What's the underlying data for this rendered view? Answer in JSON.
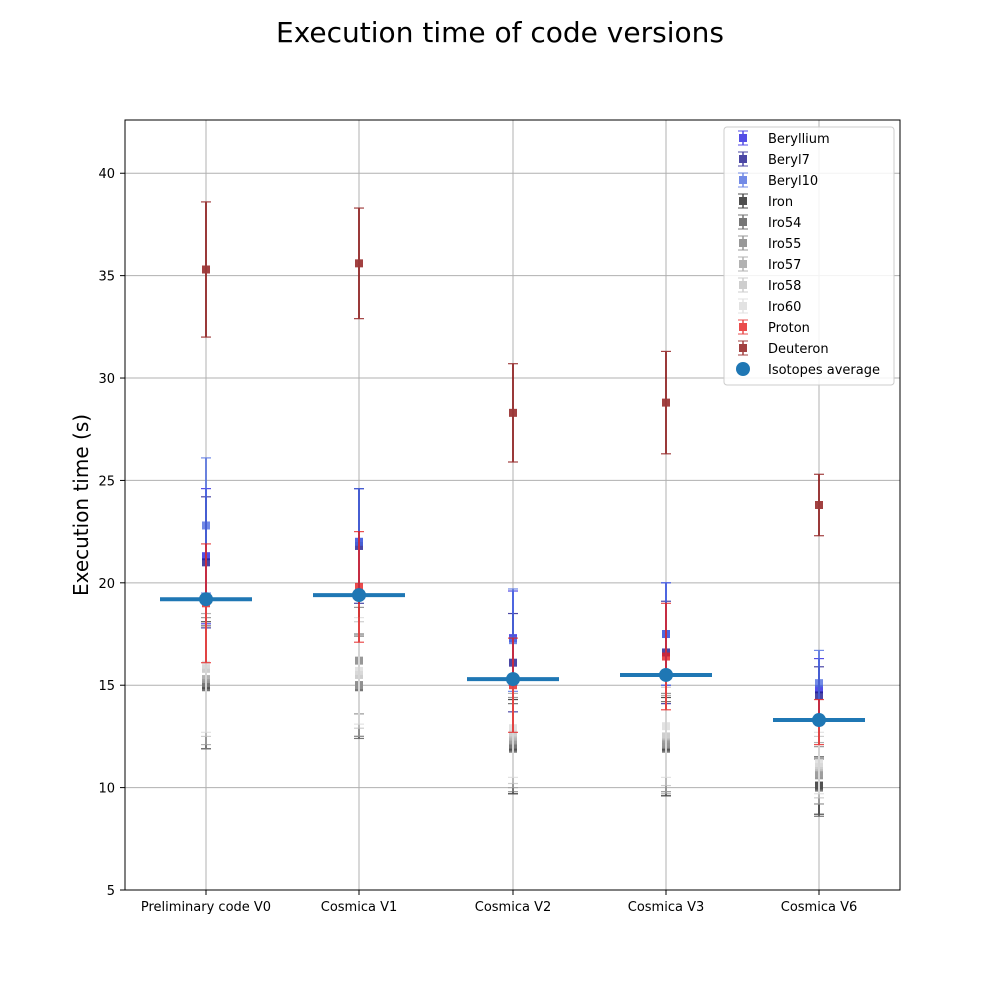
{
  "chart_data": {
    "type": "scatter",
    "title": "Execution time of code versions",
    "xlabel": "",
    "ylabel": "Execution time (s)",
    "categories": [
      "Preliminary code V0",
      "Cosmica V1",
      "Cosmica V2",
      "Cosmica V3",
      "Cosmica V6"
    ],
    "ylim": [
      5,
      42.6
    ],
    "yticks": [
      5,
      10,
      15,
      20,
      25,
      30,
      35,
      40
    ],
    "grid": true,
    "legend_position": "top-right",
    "series": [
      {
        "name": "Beryllium",
        "color": "#2a22e0",
        "values": [
          21.3,
          22.0,
          17.3,
          17.5,
          14.8
        ],
        "errors": [
          3.3,
          2.6,
          2.3,
          2.5,
          1.5
        ]
      },
      {
        "name": "Beryl7",
        "color": "#1f1a8f",
        "values": [
          21.0,
          21.8,
          16.1,
          16.6,
          14.5
        ],
        "errors": [
          3.2,
          2.8,
          2.4,
          2.5,
          1.4
        ]
      },
      {
        "name": "Beryl10",
        "color": "#4f6ee0",
        "values": [
          22.8,
          22.0,
          17.2,
          17.5,
          15.1
        ],
        "errors": [
          3.3,
          2.6,
          2.5,
          2.5,
          1.6
        ]
      },
      {
        "name": "Iron",
        "color": "#222222",
        "values": [
          15.0,
          15.0,
          12.0,
          12.0,
          10.1
        ],
        "errors": [
          3.1,
          2.5,
          2.3,
          2.4,
          1.4
        ]
      },
      {
        "name": "Iro54",
        "color": "#555555",
        "values": [
          14.9,
          14.9,
          11.9,
          11.9,
          10.0
        ],
        "errors": [
          3.0,
          2.5,
          2.2,
          2.3,
          1.4
        ]
      },
      {
        "name": "Iro55",
        "color": "#7f7f7f",
        "values": [
          15.1,
          16.2,
          12.1,
          12.2,
          10.6
        ],
        "errors": [
          3.2,
          2.6,
          2.3,
          2.4,
          1.4
        ]
      },
      {
        "name": "Iro57",
        "color": "#a0a0a0",
        "values": [
          15.3,
          15.0,
          12.3,
          12.1,
          10.7
        ],
        "errors": [
          3.2,
          2.5,
          2.3,
          2.4,
          1.5
        ]
      },
      {
        "name": "Iro58",
        "color": "#c2c2c2",
        "values": [
          15.8,
          15.5,
          12.6,
          12.5,
          11.0
        ],
        "errors": [
          3.3,
          2.6,
          2.4,
          2.4,
          1.5
        ]
      },
      {
        "name": "Iro60",
        "color": "#dcdcdc",
        "values": [
          16.0,
          15.7,
          12.9,
          13.0,
          11.2
        ],
        "errors": [
          3.3,
          2.6,
          2.4,
          2.5,
          1.5
        ]
      },
      {
        "name": "Proton",
        "color": "#e52020",
        "values": [
          19.0,
          19.8,
          15.0,
          16.4,
          13.2
        ],
        "errors": [
          2.9,
          2.7,
          2.3,
          2.6,
          1.1
        ]
      },
      {
        "name": "Deuteron",
        "color": "#8b1212",
        "values": [
          35.3,
          35.6,
          28.3,
          28.8,
          23.8
        ],
        "errors": [
          3.3,
          2.7,
          2.4,
          2.5,
          1.5
        ]
      }
    ],
    "average": {
      "name": "Isotopes average",
      "color": "#1f77b4",
      "values": [
        19.2,
        19.4,
        15.3,
        15.5,
        13.3
      ]
    }
  }
}
